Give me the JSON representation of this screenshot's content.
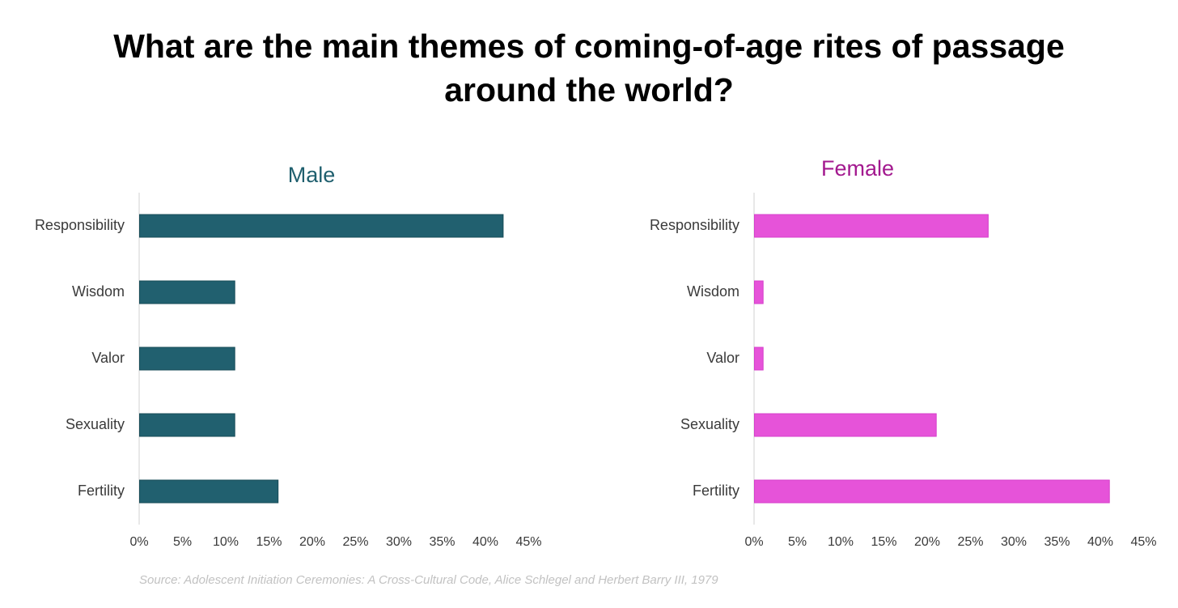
{
  "title_line1": "What are the main themes of coming-of-age rites of passage",
  "title_line2": "around the world?",
  "source": "Source:  Adolescent Initiation Ceremonies: A Cross-Cultural Code, Alice Schlegel and Herbert Barry III, 1979",
  "chart_data": [
    {
      "type": "bar",
      "orientation": "horizontal",
      "title": "Male",
      "title_color": "#1f5f6e",
      "bar_color": "#21606f",
      "categories": [
        "Responsibility",
        "Wisdom",
        "Valor",
        "Sexuality",
        "Fertility"
      ],
      "values": [
        42,
        11,
        11,
        11,
        16
      ],
      "unit": "%",
      "xlim": [
        0,
        45
      ],
      "ticks": [
        "0%",
        "5%",
        "10%",
        "15%",
        "20%",
        "25%",
        "30%",
        "35%",
        "40%",
        "45%"
      ],
      "grid": false
    },
    {
      "type": "bar",
      "orientation": "horizontal",
      "title": "Female",
      "title_color": "#a3198f",
      "bar_color": "#e653d9",
      "categories": [
        "Responsibility",
        "Wisdom",
        "Valor",
        "Sexuality",
        "Fertility"
      ],
      "values": [
        27,
        1,
        1,
        21,
        41
      ],
      "unit": "%",
      "xlim": [
        0,
        45
      ],
      "ticks": [
        "0%",
        "5%",
        "10%",
        "15%",
        "20%",
        "25%",
        "30%",
        "35%",
        "40%",
        "45%"
      ],
      "grid": false
    }
  ]
}
